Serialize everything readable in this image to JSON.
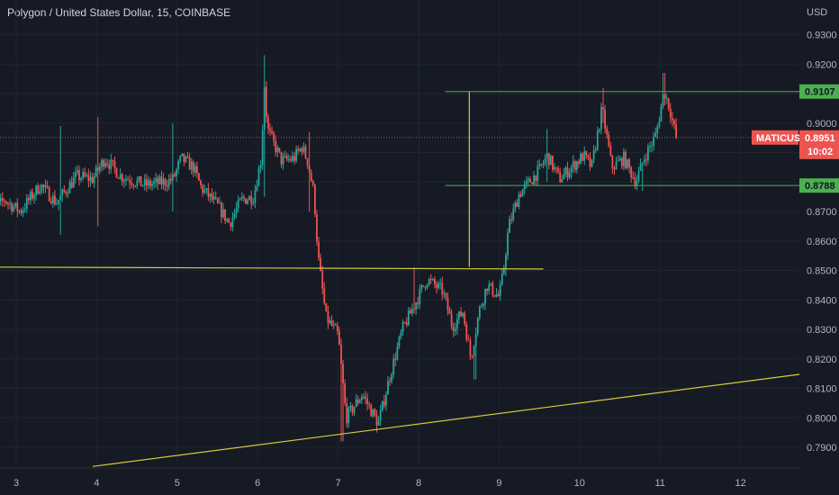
{
  "header": {
    "title": "Polygon / United States Dollar, 15, COINBASE"
  },
  "chart_data": {
    "type": "candlestick",
    "symbol": "MATICUSD",
    "currency_label": "USD",
    "y_ticks": [
      "0.9300",
      "0.9200",
      "0.9100",
      "0.9000",
      "0.8900",
      "0.8800",
      "0.8700",
      "0.8600",
      "0.8500",
      "0.8400",
      "0.8300",
      "0.8200",
      "0.8100",
      "0.8000",
      "0.7900"
    ],
    "x_ticks": [
      "3",
      "4",
      "5",
      "6",
      "7",
      "8",
      "9",
      "10",
      "11",
      "12"
    ],
    "ylim": [
      0.7835,
      0.9385
    ],
    "current_price": {
      "label": "0.8951",
      "countdown": "10:02",
      "value": 0.8951
    },
    "levels": [
      {
        "label": "0.9107",
        "value": 0.9107,
        "x_from": 8.33,
        "color": "#4caf50"
      },
      {
        "label": "0.8788",
        "value": 0.8788,
        "x_from": 8.33,
        "color": "#4caf50"
      }
    ],
    "drawings": [
      {
        "kind": "support-line",
        "x1": 2.0,
        "y1": 0.8512,
        "x2": 9.55,
        "y2": 0.8505,
        "color": "#d4cb3a"
      },
      {
        "kind": "trendline",
        "x1": 3.95,
        "y1": 0.7835,
        "x2": 12.75,
        "y2": 0.8148,
        "color": "#d4cb3a"
      },
      {
        "kind": "measure-vertical",
        "x1": 8.63,
        "y1": 0.8512,
        "x2": 8.63,
        "y2": 0.9107,
        "color": "#d4cb3a"
      }
    ],
    "colors": {
      "up": "#26a69a",
      "down": "#ef5350",
      "price_line": "#ef5350",
      "level": "#4caf50",
      "drawing": "#d4cb3a"
    },
    "grid": true,
    "path": [
      [
        2.62,
        0.867
      ],
      [
        2.85,
        0.874
      ],
      [
        3.05,
        0.87
      ],
      [
        3.3,
        0.879
      ],
      [
        3.5,
        0.873
      ],
      [
        3.75,
        0.882
      ],
      [
        3.95,
        0.881
      ],
      [
        4.1,
        0.888
      ],
      [
        4.3,
        0.882
      ],
      [
        4.6,
        0.879
      ],
      [
        4.85,
        0.88
      ],
      [
        4.95,
        0.881
      ],
      [
        5.05,
        0.888
      ],
      [
        5.2,
        0.885
      ],
      [
        5.3,
        0.878
      ],
      [
        5.5,
        0.872
      ],
      [
        5.65,
        0.866
      ],
      [
        5.8,
        0.874
      ],
      [
        5.95,
        0.875
      ],
      [
        6.05,
        0.889
      ],
      [
        6.08,
        0.915
      ],
      [
        6.12,
        0.898
      ],
      [
        6.3,
        0.887
      ],
      [
        6.45,
        0.888
      ],
      [
        6.55,
        0.892
      ],
      [
        6.62,
        0.887
      ],
      [
        6.7,
        0.876
      ],
      [
        6.75,
        0.855
      ],
      [
        6.85,
        0.834
      ],
      [
        7.0,
        0.828
      ],
      [
        7.1,
        0.8
      ],
      [
        7.3,
        0.808
      ],
      [
        7.5,
        0.798
      ],
      [
        7.65,
        0.815
      ],
      [
        7.8,
        0.83
      ],
      [
        7.98,
        0.84
      ],
      [
        8.1,
        0.847
      ],
      [
        8.2,
        0.845
      ],
      [
        8.3,
        0.843
      ],
      [
        8.42,
        0.831
      ],
      [
        8.55,
        0.836
      ],
      [
        8.65,
        0.82
      ],
      [
        8.75,
        0.836
      ],
      [
        8.85,
        0.845
      ],
      [
        9.0,
        0.841
      ],
      [
        9.05,
        0.849
      ],
      [
        9.12,
        0.865
      ],
      [
        9.25,
        0.876
      ],
      [
        9.5,
        0.884
      ],
      [
        9.6,
        0.889
      ],
      [
        9.75,
        0.881
      ],
      [
        9.9,
        0.885
      ],
      [
        10.05,
        0.889
      ],
      [
        10.15,
        0.885
      ],
      [
        10.28,
        0.905
      ],
      [
        10.4,
        0.885
      ],
      [
        10.55,
        0.888
      ],
      [
        10.7,
        0.88
      ],
      [
        10.8,
        0.888
      ],
      [
        10.95,
        0.896
      ],
      [
        11.05,
        0.911
      ],
      [
        11.12,
        0.905
      ],
      [
        11.2,
        0.895
      ]
    ],
    "swings": [
      [
        3.55,
        0.899,
        0.862
      ],
      [
        4.02,
        0.902,
        0.865
      ],
      [
        4.95,
        0.9,
        0.87
      ],
      [
        6.08,
        0.923,
        0.875
      ],
      [
        6.65,
        0.897,
        0.87
      ],
      [
        7.05,
        0.793,
        0.792
      ],
      [
        7.48,
        0.797,
        0.795
      ],
      [
        7.95,
        0.851,
        0.838
      ],
      [
        8.7,
        0.815,
        0.813
      ],
      [
        9.08,
        0.856,
        0.848
      ],
      [
        9.6,
        0.898,
        0.88
      ],
      [
        10.3,
        0.912,
        0.9
      ],
      [
        10.78,
        0.878,
        0.877
      ],
      [
        11.05,
        0.917,
        0.906
      ]
    ],
    "n_candles": 370
  }
}
